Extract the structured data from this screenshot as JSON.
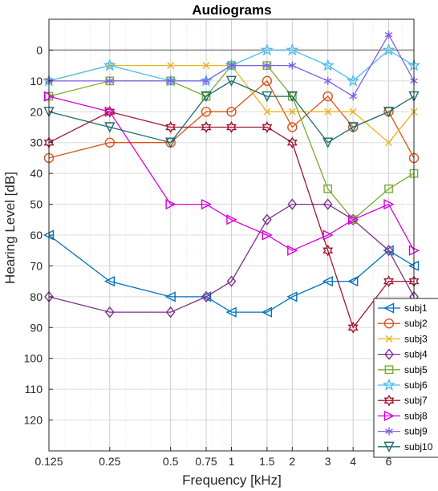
{
  "chart_data": {
    "type": "line",
    "title": "Audiograms",
    "xlabel": "Frequency [kHz]",
    "ylabel": "Hearing Level [dB]",
    "x_scale": "log",
    "x": [
      0.125,
      0.25,
      0.5,
      0.75,
      1,
      1.5,
      2,
      3,
      4,
      6,
      8
    ],
    "x_tick_labels": [
      "0.125",
      "0.25",
      "0.5",
      "0.75",
      "1",
      "1.5",
      "2",
      "3",
      "4",
      "6"
    ],
    "xlim": [
      0.125,
      8
    ],
    "y_tick_labels": [
      "0",
      "10",
      "20",
      "30",
      "40",
      "50",
      "60",
      "70",
      "80",
      "90",
      "100",
      "110",
      "120"
    ],
    "ylim": [
      -10,
      130
    ],
    "y_reversed": true,
    "grid": true,
    "legend_position": "bottom-right",
    "series": [
      {
        "name": "subj1",
        "color": "#0072BD",
        "marker": "triangle-left",
        "values": [
          60,
          75,
          80,
          80,
          85,
          85,
          80,
          75,
          75,
          65,
          70
        ]
      },
      {
        "name": "subj2",
        "color": "#D95319",
        "marker": "circle",
        "values": [
          35,
          30,
          30,
          20,
          20,
          10,
          25,
          15,
          25,
          20,
          35
        ]
      },
      {
        "name": "subj3",
        "color": "#EDB120",
        "marker": "x",
        "values": [
          10,
          5,
          5,
          5,
          5,
          20,
          20,
          20,
          20,
          30,
          20
        ]
      },
      {
        "name": "subj4",
        "color": "#7E2F8E",
        "marker": "diamond",
        "values": [
          80,
          85,
          85,
          80,
          75,
          55,
          50,
          50,
          55,
          65,
          80
        ]
      },
      {
        "name": "subj5",
        "color": "#77AC30",
        "marker": "square",
        "values": [
          15,
          10,
          10,
          15,
          5,
          5,
          15,
          45,
          55,
          45,
          40
        ]
      },
      {
        "name": "subj6",
        "color": "#4DBEEE",
        "marker": "pentagram",
        "values": [
          10,
          5,
          10,
          10,
          5,
          0,
          0,
          5,
          10,
          0,
          5
        ]
      },
      {
        "name": "subj7",
        "color": "#A2142F",
        "marker": "hexagram",
        "values": [
          30,
          20,
          25,
          25,
          25,
          25,
          30,
          65,
          90,
          75,
          75
        ]
      },
      {
        "name": "subj8",
        "color": "#D900D9",
        "marker": "triangle-right",
        "values": [
          15,
          20,
          50,
          50,
          55,
          60,
          65,
          60,
          55,
          50,
          65
        ]
      },
      {
        "name": "subj9",
        "color": "#7F60E8",
        "marker": "asterisk",
        "values": [
          10,
          10,
          10,
          10,
          5,
          5,
          5,
          10,
          15,
          -5,
          10
        ]
      },
      {
        "name": "subj10",
        "color": "#1F6B6B",
        "marker": "triangle-down",
        "values": [
          20,
          25,
          30,
          15,
          10,
          15,
          15,
          30,
          25,
          20,
          15
        ]
      }
    ]
  }
}
